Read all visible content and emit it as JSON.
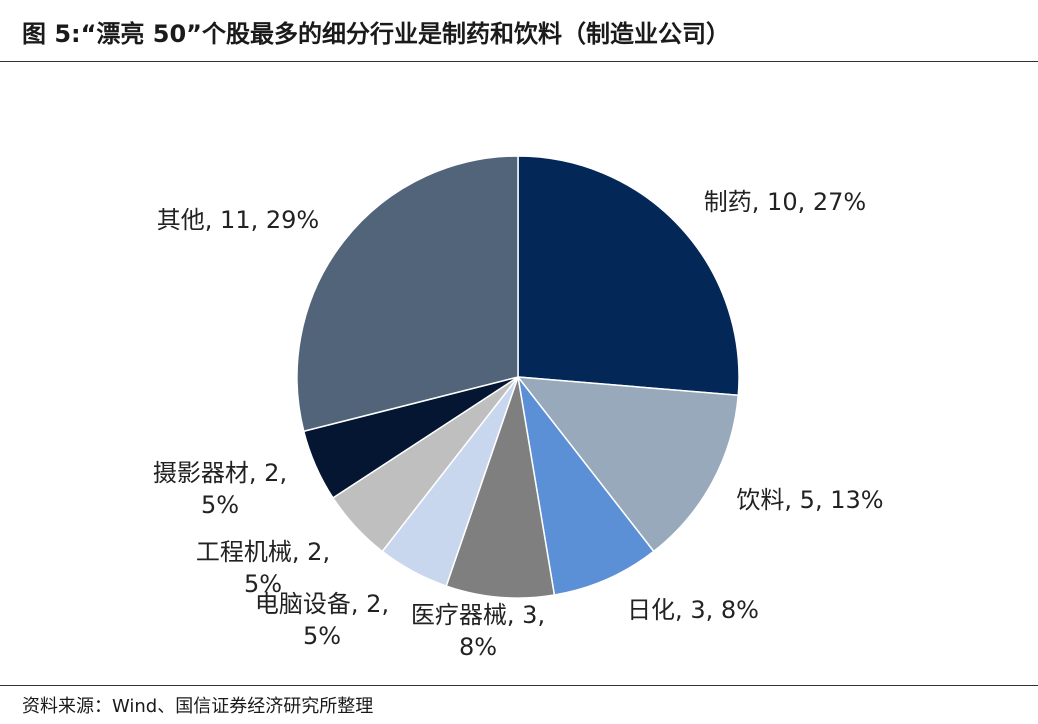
{
  "header": {
    "title": "图 5:“漂亮 50”个股最多的细分行业是制药和饮料（制造业公司）"
  },
  "footer": {
    "source": "资料来源：Wind、国信证券经济研究所整理"
  },
  "chart_data": {
    "type": "pie",
    "title": "",
    "slices": [
      {
        "name": "制药",
        "value": 10,
        "percent": "27%",
        "color": "#032857"
      },
      {
        "name": "饮料",
        "value": 5,
        "percent": "13%",
        "color": "#97a9bb"
      },
      {
        "name": "日化",
        "value": 3,
        "percent": "8%",
        "color": "#5b8fd6"
      },
      {
        "name": "医疗器械",
        "value": 3,
        "percent": "8%",
        "color": "#7f7f7f"
      },
      {
        "name": "电脑设备",
        "value": 2,
        "percent": "5%",
        "color": "#c9d7ee"
      },
      {
        "name": "工程机械",
        "value": 2,
        "percent": "5%",
        "color": "#bfbfbf"
      },
      {
        "name": "摄影器材",
        "value": 2,
        "percent": "5%",
        "color": "#051632"
      },
      {
        "name": "其他",
        "value": 11,
        "percent": "29%",
        "color": "#516479"
      }
    ],
    "labels": [
      {
        "lines": [
          "制药, 10, 27%"
        ]
      },
      {
        "lines": [
          "饮料, 5, 13%"
        ]
      },
      {
        "lines": [
          "日化, 3, 8%"
        ]
      },
      {
        "lines": [
          "医疗器械, 3,",
          "8%"
        ]
      },
      {
        "lines": [
          "电脑设备, 2,",
          "5%"
        ]
      },
      {
        "lines": [
          "工程机械, 2,",
          "5%"
        ]
      },
      {
        "lines": [
          "摄影器材, 2,",
          "5%"
        ]
      },
      {
        "lines": [
          "其他, 11, 29%"
        ]
      }
    ]
  }
}
